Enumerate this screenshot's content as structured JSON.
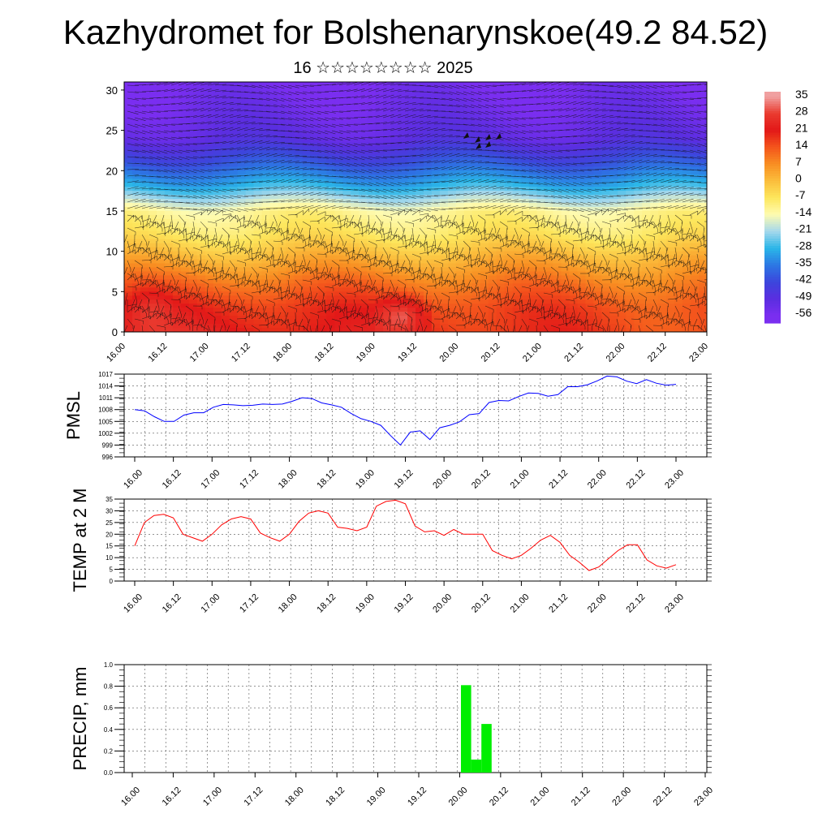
{
  "title": "Kazhydromet for Bolshenarynskoe(49.2 84.52)",
  "subtitle": "16 ☆☆☆☆☆☆☆☆ 2025",
  "chart_data": [
    {
      "type": "heatmap",
      "name": "cross-section",
      "xlabel": "",
      "ylabel": "",
      "xticks": [
        "16.00",
        "16.12",
        "17.00",
        "17.12",
        "18.00",
        "18.12",
        "19.00",
        "19.12",
        "20.00",
        "20.12",
        "21.00",
        "21.12",
        "22.00",
        "22.12",
        "23.00"
      ],
      "yticks": [
        "0",
        "5",
        "10",
        "15",
        "20",
        "25",
        "30"
      ],
      "ylim": [
        0,
        31
      ],
      "colorbar": {
        "labels": [
          "35",
          "28",
          "21",
          "14",
          "7",
          "0",
          "-7",
          "-14",
          "-21",
          "-28",
          "-35",
          "-42",
          "-49",
          "-56"
        ],
        "colors": [
          "#f0a0a0",
          "#ea3c30",
          "#e21818",
          "#f4541c",
          "#f88e22",
          "#fbbd3c",
          "#fde65c",
          "#fefbb0",
          "#a6d8ec",
          "#2ab6e8",
          "#2c78e4",
          "#3c46dc",
          "#5a2ee0",
          "#7a2ef0"
        ]
      },
      "temperature_profile": {
        "heights": [
          0,
          3,
          6,
          9,
          12,
          15,
          18,
          21,
          24,
          27,
          31
        ],
        "values": [
          24,
          20,
          12,
          2,
          -7,
          -12,
          -28,
          -40,
          -50,
          -53,
          -56
        ]
      },
      "vectors": "wind barbs overlay"
    },
    {
      "type": "line",
      "name": "pmsl",
      "ylabel": "PMSL",
      "ylim": [
        996,
        1017
      ],
      "yticks": [
        "996",
        "999",
        "1002",
        "1005",
        "1008",
        "1011",
        "1014",
        "1017"
      ],
      "xticks": [
        "16.00",
        "16.12",
        "17.00",
        "17.12",
        "18.00",
        "18.12",
        "19.00",
        "19.12",
        "20.00",
        "20.12",
        "21.00",
        "21.12",
        "22.00",
        "22.12",
        "23.00"
      ],
      "color": "#0000ff",
      "values": [
        1008.0,
        1007.7,
        1006.2,
        1005.0,
        1005.0,
        1006.6,
        1007.2,
        1007.2,
        1008.6,
        1009.3,
        1009.2,
        1009.0,
        1009.1,
        1009.4,
        1009.3,
        1009.4,
        1010.1,
        1011.0,
        1010.8,
        1009.7,
        1009.2,
        1008.6,
        1007.0,
        1005.7,
        1005.0,
        1004.0,
        1001.4,
        999.0,
        1002.3,
        1002.6,
        1000.4,
        1003.4,
        1004.0,
        1004.9,
        1006.7,
        1007.0,
        1009.8,
        1010.3,
        1010.2,
        1011.3,
        1012.2,
        1012.1,
        1011.4,
        1011.8,
        1013.8,
        1013.8,
        1014.3,
        1015.3,
        1016.5,
        1016.3,
        1015.2,
        1014.6,
        1015.6,
        1014.7,
        1014.2,
        1014.4
      ]
    },
    {
      "type": "line",
      "name": "temp",
      "ylabel": "TEMP at 2 M",
      "ylim": [
        0,
        35
      ],
      "yticks": [
        "0",
        "5",
        "10",
        "15",
        "20",
        "25",
        "30",
        "35"
      ],
      "xticks": [
        "16.00",
        "16.12",
        "17.00",
        "17.12",
        "18.00",
        "18.12",
        "19.00",
        "19.12",
        "20.00",
        "20.12",
        "21.00",
        "21.12",
        "22.00",
        "22.12",
        "23.00"
      ],
      "color": "#ff0000",
      "values": [
        15,
        25,
        28,
        28.5,
        27,
        20,
        18.5,
        17,
        20,
        24,
        26.5,
        27.5,
        26.5,
        20.5,
        18.5,
        17,
        20,
        25.5,
        29,
        30,
        29,
        23,
        22.5,
        21.5,
        23,
        32,
        34,
        34.5,
        33,
        23.5,
        21,
        21.5,
        19.5,
        22,
        20,
        20,
        20,
        13,
        11,
        9.5,
        11,
        14,
        17.5,
        19.5,
        16.5,
        11,
        8,
        4.5,
        6,
        9.5,
        13,
        15.5,
        15.5,
        9,
        6.5,
        5.5,
        7
      ]
    },
    {
      "type": "bar",
      "name": "precip",
      "ylabel": "PRECIP, mm",
      "ylim": [
        0,
        1.0
      ],
      "yticks": [
        "0.0",
        "0.2",
        "0.4",
        "0.6",
        "0.8",
        "1.0"
      ],
      "xticks": [
        "16.00",
        "16.12",
        "17.00",
        "17.12",
        "18.00",
        "18.12",
        "19.00",
        "19.12",
        "20.00",
        "20.12",
        "21.00",
        "21.12",
        "22.00",
        "22.12",
        "23.00"
      ],
      "color": "#00ee00",
      "bars": [
        {
          "slot": 32,
          "value": 0.81
        },
        {
          "slot": 33,
          "value": 0.12
        },
        {
          "slot": 34,
          "value": 0.45
        }
      ]
    }
  ]
}
